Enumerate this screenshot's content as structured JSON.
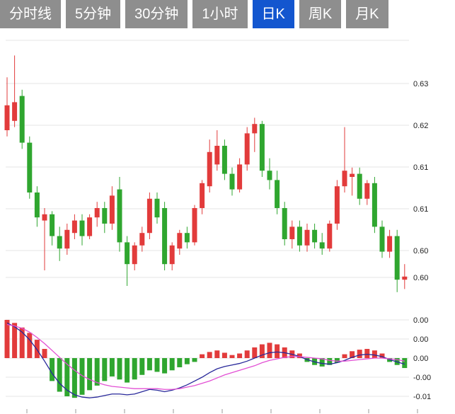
{
  "tabs": {
    "items": [
      {
        "name": "tab-minute-line",
        "label": "分时线",
        "active": false
      },
      {
        "name": "tab-5min",
        "label": "5分钟",
        "active": false
      },
      {
        "name": "tab-30min",
        "label": "30分钟",
        "active": false
      },
      {
        "name": "tab-1hour",
        "label": "1小时",
        "active": false
      },
      {
        "name": "tab-daily-k",
        "label": "日K",
        "active": true
      },
      {
        "name": "tab-weekly-k",
        "label": "周K",
        "active": false
      },
      {
        "name": "tab-monthly-k",
        "label": "月K",
        "active": false
      }
    ]
  },
  "colors": {
    "up": "#e23b3b",
    "down": "#2fa62f",
    "dif_line": "#28289a",
    "dea_line": "#e24fd4",
    "grid": "#e4e4e4",
    "axis_text": "#222222",
    "tick": "#999999",
    "tab_bg": "#8e8e8e",
    "tab_active_bg": "#1356cf",
    "tab_text": "#ffffff",
    "background": "#ffffff"
  },
  "chart_data": {
    "type": "candlestick",
    "title": "",
    "legend": "none",
    "grid": true,
    "panels": [
      "price",
      "macd"
    ],
    "price_axis_labels": [
      "0.63",
      "0.62",
      "0.61",
      "0.61",
      "0.60",
      "0.60"
    ],
    "macd_axis_labels": [
      "0.00",
      "0.00",
      "0.00",
      "-0.00",
      "-0.01"
    ],
    "price_range": [
      0.595,
      0.636
    ],
    "macd_range": [
      -0.006,
      0.006
    ],
    "ohlc": [
      [
        0.6225,
        0.631,
        0.6215,
        0.6265
      ],
      [
        0.624,
        0.6345,
        0.623,
        0.627
      ],
      [
        0.628,
        0.629,
        0.6195,
        0.6205
      ],
      [
        0.6205,
        0.6215,
        0.6115,
        0.6125
      ],
      [
        0.6125,
        0.6135,
        0.607,
        0.6085
      ],
      [
        0.608,
        0.61,
        0.6,
        0.609
      ],
      [
        0.609,
        0.6095,
        0.604,
        0.6055
      ],
      [
        0.6055,
        0.607,
        0.6015,
        0.6035
      ],
      [
        0.6035,
        0.6075,
        0.6025,
        0.6065
      ],
      [
        0.606,
        0.609,
        0.605,
        0.608
      ],
      [
        0.608,
        0.609,
        0.604,
        0.6055
      ],
      [
        0.6055,
        0.609,
        0.605,
        0.6085
      ],
      [
        0.6085,
        0.611,
        0.607,
        0.61
      ],
      [
        0.61,
        0.611,
        0.606,
        0.6075
      ],
      [
        0.6075,
        0.6135,
        0.6065,
        0.612
      ],
      [
        0.613,
        0.615,
        0.603,
        0.6045
      ],
      [
        0.6045,
        0.6055,
        0.5975,
        0.601
      ],
      [
        0.601,
        0.6045,
        0.6,
        0.604
      ],
      [
        0.604,
        0.607,
        0.603,
        0.606
      ],
      [
        0.606,
        0.6125,
        0.605,
        0.6115
      ],
      [
        0.6115,
        0.6125,
        0.6075,
        0.6085
      ],
      [
        0.61,
        0.611,
        0.6,
        0.601
      ],
      [
        0.601,
        0.6045,
        0.6,
        0.604
      ],
      [
        0.6035,
        0.6065,
        0.6025,
        0.606
      ],
      [
        0.606,
        0.607,
        0.6035,
        0.6045
      ],
      [
        0.6045,
        0.6105,
        0.604,
        0.61
      ],
      [
        0.61,
        0.6145,
        0.609,
        0.614
      ],
      [
        0.6135,
        0.621,
        0.6125,
        0.619
      ],
      [
        0.617,
        0.6225,
        0.616,
        0.62
      ],
      [
        0.62,
        0.621,
        0.6145,
        0.6155
      ],
      [
        0.6155,
        0.6165,
        0.612,
        0.613
      ],
      [
        0.613,
        0.618,
        0.6125,
        0.617
      ],
      [
        0.617,
        0.623,
        0.616,
        0.622
      ],
      [
        0.622,
        0.6245,
        0.619,
        0.6235
      ],
      [
        0.6235,
        0.624,
        0.615,
        0.616
      ],
      [
        0.616,
        0.618,
        0.613,
        0.6145
      ],
      [
        0.6145,
        0.616,
        0.609,
        0.61
      ],
      [
        0.61,
        0.611,
        0.604,
        0.605
      ],
      [
        0.605,
        0.608,
        0.6035,
        0.607
      ],
      [
        0.607,
        0.608,
        0.603,
        0.604
      ],
      [
        0.604,
        0.6075,
        0.603,
        0.6065
      ],
      [
        0.6065,
        0.6075,
        0.6035,
        0.6045
      ],
      [
        0.6045,
        0.606,
        0.6025,
        0.6035
      ],
      [
        0.6035,
        0.608,
        0.603,
        0.6075
      ],
      [
        0.6075,
        0.6145,
        0.6065,
        0.6135
      ],
      [
        0.6135,
        0.623,
        0.6125,
        0.616
      ],
      [
        0.615,
        0.6165,
        0.612,
        0.6155
      ],
      [
        0.6155,
        0.6165,
        0.6105,
        0.6115
      ],
      [
        0.6115,
        0.6145,
        0.6105,
        0.614
      ],
      [
        0.614,
        0.615,
        0.606,
        0.607
      ],
      [
        0.607,
        0.608,
        0.602,
        0.603
      ],
      [
        0.603,
        0.6065,
        0.602,
        0.6055
      ],
      [
        0.6055,
        0.6065,
        0.5965,
        0.5985
      ],
      [
        0.5985,
        0.601,
        0.597,
        0.599
      ]
    ],
    "macd": {
      "histogram": [
        0.005,
        0.0046,
        0.004,
        0.0033,
        0.0024,
        0.0012,
        -0.003,
        -0.0044,
        -0.005,
        -0.0052,
        -0.0048,
        -0.0042,
        -0.0036,
        -0.003,
        -0.0024,
        -0.0028,
        -0.0032,
        -0.0028,
        -0.0022,
        -0.0016,
        -0.0018,
        -0.002,
        -0.0016,
        -0.0012,
        -0.0008,
        -0.0005,
        0.0005,
        0.0008,
        0.001,
        0.0007,
        0.0004,
        0.0006,
        0.001,
        0.0014,
        0.0018,
        0.002,
        0.0018,
        0.0014,
        0.001,
        0.0006,
        -0.0005,
        -0.0009,
        -0.0011,
        -0.0009,
        -0.0006,
        0.0005,
        0.0009,
        0.0011,
        0.0012,
        0.001,
        0.0006,
        -0.0005,
        -0.0009,
        -0.0013
      ],
      "dif": [
        0.0046,
        0.0041,
        0.0034,
        0.0024,
        0.0011,
        -0.0004,
        -0.002,
        -0.0033,
        -0.0042,
        -0.0048,
        -0.0051,
        -0.0052,
        -0.0051,
        -0.0049,
        -0.0047,
        -0.0047,
        -0.0048,
        -0.0047,
        -0.0044,
        -0.0041,
        -0.0042,
        -0.0044,
        -0.0042,
        -0.0039,
        -0.0035,
        -0.003,
        -0.0025,
        -0.0019,
        -0.0014,
        -0.0011,
        -0.0009,
        -0.0007,
        -0.0004,
        0.0,
        0.0004,
        0.0007,
        0.0008,
        0.0007,
        0.0005,
        0.0002,
        -0.0002,
        -0.0005,
        -0.0007,
        -0.0008,
        -0.0006,
        -0.0003,
        0.0001,
        0.0004,
        0.0005,
        0.0004,
        0.0002,
        -0.0002,
        -0.0005,
        -0.0008
      ],
      "dea": [
        0.0044,
        0.0042,
        0.0039,
        0.0034,
        0.0027,
        0.0019,
        0.001,
        0.0001,
        -0.0008,
        -0.0016,
        -0.0023,
        -0.0028,
        -0.0032,
        -0.0035,
        -0.0037,
        -0.0038,
        -0.0039,
        -0.004,
        -0.004,
        -0.004,
        -0.004,
        -0.0041,
        -0.0041,
        -0.004,
        -0.0038,
        -0.0036,
        -0.0033,
        -0.003,
        -0.0026,
        -0.0022,
        -0.0019,
        -0.0016,
        -0.0013,
        -0.001,
        -0.0006,
        -0.0003,
        -0.0001,
        0.0001,
        0.0002,
        0.0002,
        0.0001,
        0.0,
        -0.0001,
        -0.0003,
        -0.0004,
        -0.0004,
        -0.0003,
        -0.0002,
        -0.0001,
        0.0,
        0.0,
        -0.0001,
        -0.0002,
        -0.0004
      ]
    }
  }
}
